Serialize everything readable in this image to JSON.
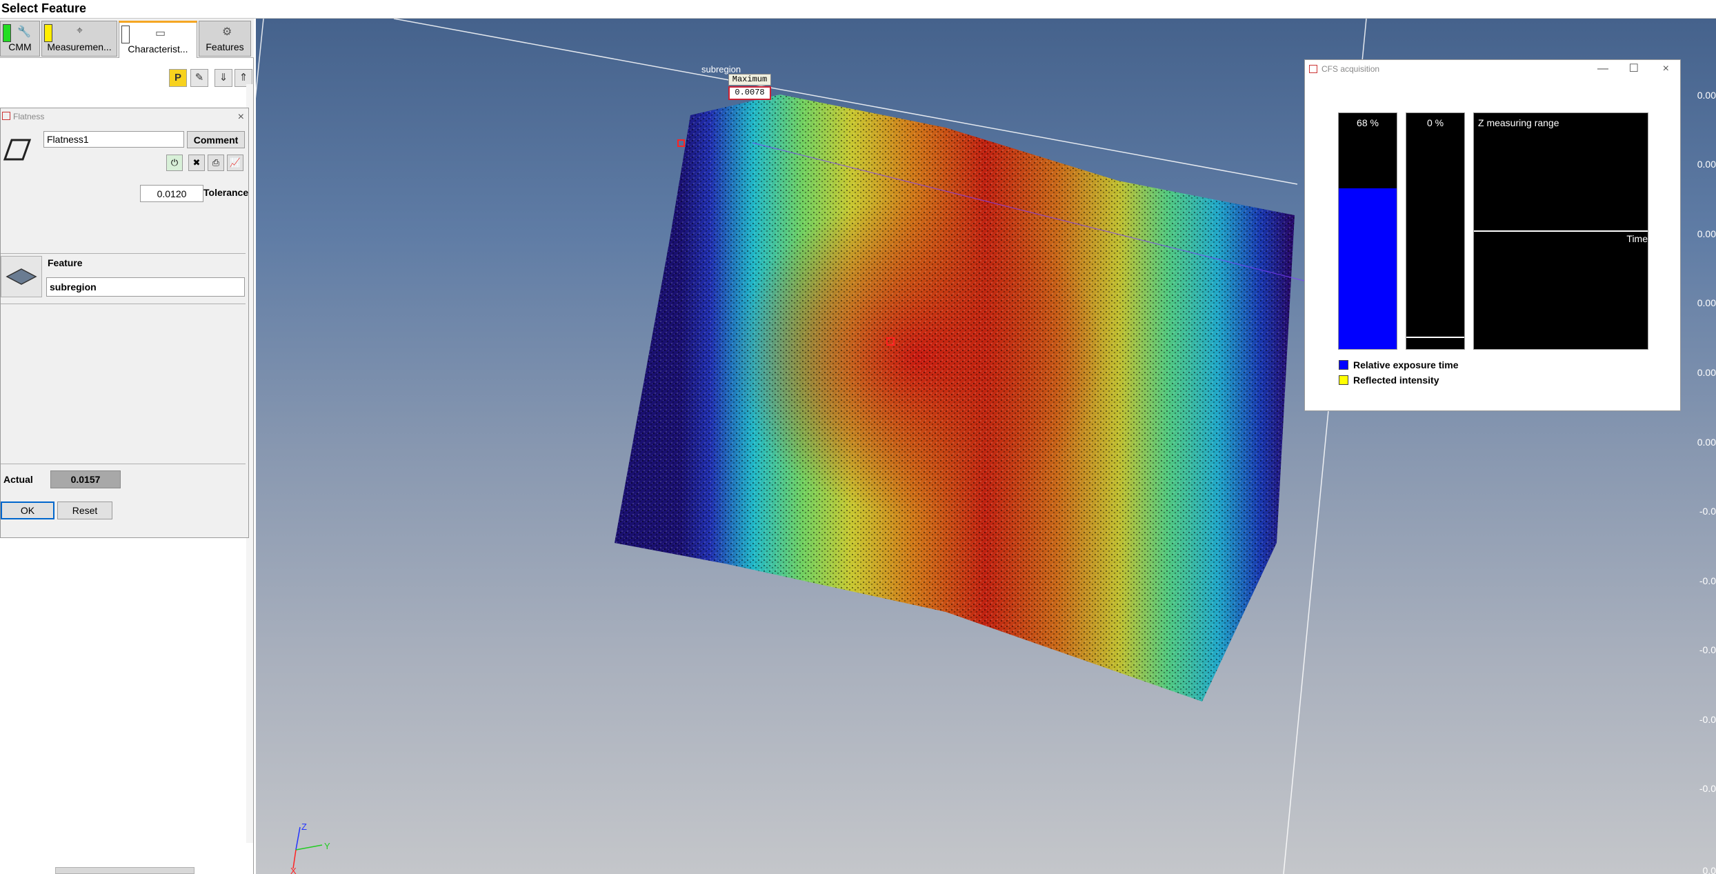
{
  "app": {
    "title": "Select Feature"
  },
  "tabs": [
    {
      "label": "CMM",
      "swatch": "#22dd22"
    },
    {
      "label": "Measuremen...",
      "swatch": "#ffee00"
    },
    {
      "label": "Characterist...",
      "swatch": "#ffffff"
    },
    {
      "label": "Features"
    }
  ],
  "toolbar": {
    "p_label": "P"
  },
  "flatness": {
    "title": "Flatness",
    "close": "×",
    "name_value": "Flatness1",
    "comment_label": "Comment",
    "tolerance_value": "0.0120",
    "tolerance_label": "Tolerance",
    "feature_label": "Feature",
    "feature_value": "subregion",
    "actual_label": "Actual",
    "actual_value": "0.0157",
    "ok_label": "OK",
    "reset_label": "Reset"
  },
  "viewport": {
    "subregion_label": "subregion",
    "max_label": "Maximum",
    "max_value": "0.0078",
    "scale_labels": [
      "0.00",
      "0.00",
      "0.00",
      "0.00",
      "0.00",
      "0.00",
      "-0.0",
      "-0.0",
      "-0.0",
      "-0.0",
      "-0.0",
      "0.0"
    ],
    "axis_labels": {
      "z": "Z",
      "y": "Y",
      "x": "X"
    }
  },
  "cfs": {
    "title": "CFS acquisition",
    "minimize": "—",
    "maximize": "☐",
    "close": "×",
    "exposure_fill": 0.68,
    "exposure_text": "68 %",
    "intensity_fill": 0.0,
    "intensity_text": "0 %",
    "z_range_label": "Z measuring range",
    "time_label": "Time",
    "legend": [
      {
        "color": "#0000ff",
        "label": "Relative exposure time"
      },
      {
        "color": "#ffff00",
        "label": "Reflected intensity"
      }
    ]
  }
}
